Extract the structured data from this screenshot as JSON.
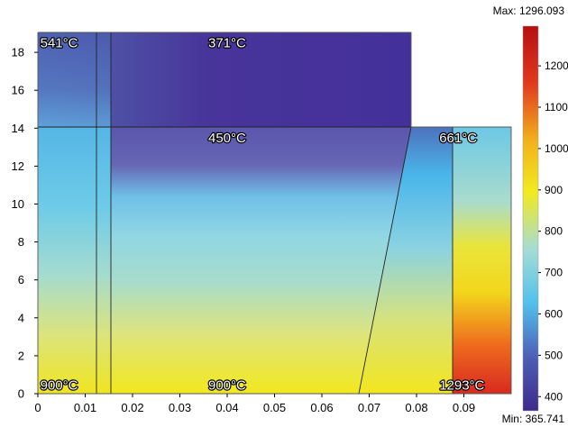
{
  "chart_data": {
    "type": "heatmap",
    "title": "",
    "xlabel": "",
    "ylabel": "",
    "xlim": [
      0,
      0.1
    ],
    "ylim": [
      0,
      19
    ],
    "x_ticks": [
      "0",
      "0.01",
      "0.02",
      "0.03",
      "0.04",
      "0.05",
      "0.06",
      "0.07",
      "0.08",
      "0.09"
    ],
    "y_ticks": [
      "0",
      "2",
      "4",
      "6",
      "8",
      "10",
      "12",
      "14",
      "16",
      "18"
    ],
    "colorbar": {
      "max_label": "Max: 1296.093",
      "min_label": "Min: 365.741",
      "max": 1296.093,
      "min": 365.741,
      "ticks": [
        "400",
        "500",
        "600",
        "700",
        "800",
        "900",
        "1000",
        "1100",
        "1200"
      ],
      "colors": [
        "#3e2a8a",
        "#4d5fb6",
        "#52c1ec",
        "#a6dcd4",
        "#f3ea1e",
        "#f1b31c",
        "#e23a1f",
        "#b70d12"
      ]
    },
    "annotations": [
      {
        "text": "541°C",
        "x": 0.0005,
        "y": 18.5
      },
      {
        "text": "371°C",
        "x": 0.036,
        "y": 18.5
      },
      {
        "text": "450°C",
        "x": 0.036,
        "y": 13.5
      },
      {
        "text": "661°C",
        "x": 0.0848,
        "y": 13.5
      },
      {
        "text": "900°C",
        "x": 0.0005,
        "y": 0.45
      },
      {
        "text": "900°C",
        "x": 0.036,
        "y": 0.45
      },
      {
        "text": "1293°C",
        "x": 0.0848,
        "y": 0.45
      }
    ],
    "domains": {
      "upper_block": {
        "x": [
          0,
          0.0785
        ],
        "y": [
          14,
          19
        ]
      },
      "lower_block": {
        "x": [
          0,
          0.0995
        ],
        "y": [
          0,
          14
        ]
      },
      "lines": [
        {
          "x": [
            0.0123,
            0.0123
          ],
          "y": [
            0,
            19
          ]
        },
        {
          "x": [
            0.0155,
            0.0155
          ],
          "y": [
            0,
            19
          ]
        },
        {
          "x": [
            0,
            0.0995
          ],
          "y": [
            14,
            14
          ]
        },
        {
          "x": [
            0.0675,
            0.0785
          ],
          "y": [
            0,
            14
          ]
        },
        {
          "x": [
            0.0873,
            0.0873
          ],
          "y": [
            0,
            14
          ]
        }
      ]
    }
  }
}
